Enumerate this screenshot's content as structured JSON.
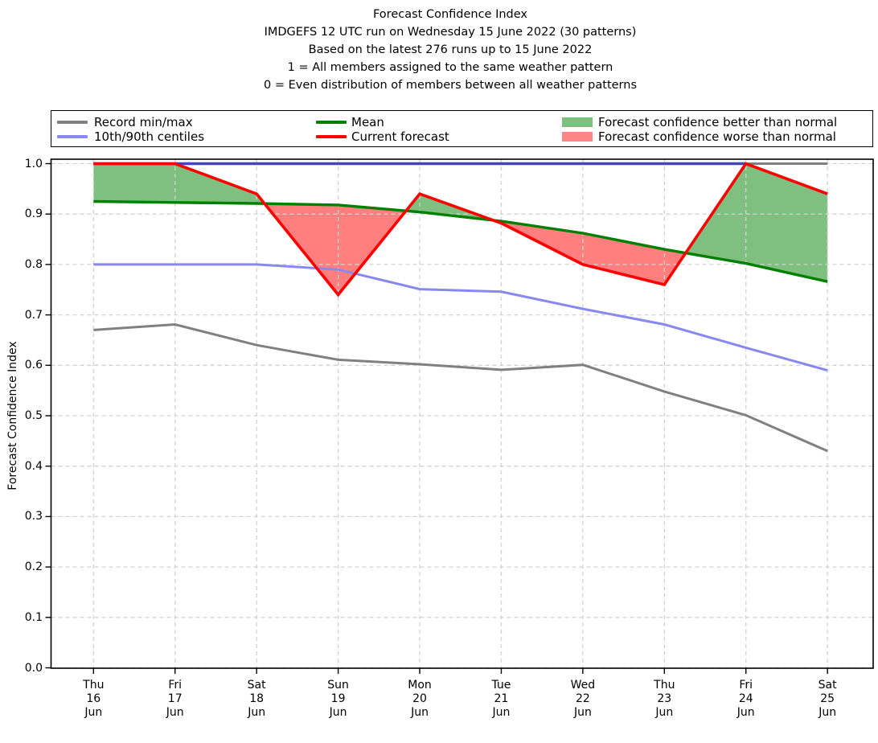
{
  "title_lines": [
    "Forecast Confidence Index",
    "IMDGEFS 12 UTC run on Wednesday 15 June 2022 (30 patterns)",
    "Based on the latest 276 runs up to 15 June 2022",
    "1 = All members assigned to the same weather pattern",
    "0 = Even distribution of members between all weather patterns"
  ],
  "legend": {
    "items": [
      {
        "label": "Record min/max",
        "type": "line",
        "color": "#808080"
      },
      {
        "label": "10th/90th centiles",
        "type": "line",
        "color": "#8888ee"
      },
      {
        "label": "Mean",
        "type": "line",
        "color": "#008000"
      },
      {
        "label": "Current forecast",
        "type": "line",
        "color": "#ff0000"
      },
      {
        "label": "Forecast confidence better than normal",
        "type": "patch",
        "color": "#7dc07d"
      },
      {
        "label": "Forecast confidence worse than normal",
        "type": "patch",
        "color": "#fc8585"
      }
    ]
  },
  "chart_data": {
    "type": "line",
    "title": "Forecast Confidence Index",
    "ylabel": "Forecast Confidence Index",
    "ylim": [
      0.0,
      1.0
    ],
    "yticks": [
      0.0,
      0.1,
      0.2,
      0.3,
      0.4,
      0.5,
      0.6,
      0.7,
      0.8,
      0.9,
      1.0
    ],
    "grid": true,
    "legend_position": "top",
    "categories": [
      [
        "Thu",
        "16",
        "Jun"
      ],
      [
        "Fri",
        "17",
        "Jun"
      ],
      [
        "Sat",
        "18",
        "Jun"
      ],
      [
        "Sun",
        "19",
        "Jun"
      ],
      [
        "Mon",
        "20",
        "Jun"
      ],
      [
        "Tue",
        "21",
        "Jun"
      ],
      [
        "Wed",
        "22",
        "Jun"
      ],
      [
        "Thu",
        "23",
        "Jun"
      ],
      [
        "Fri",
        "24",
        "Jun"
      ],
      [
        "Sat",
        "25",
        "Jun"
      ]
    ],
    "series": [
      {
        "key": "record_max",
        "name": "Record max",
        "color": "#808080",
        "values": [
          1.0,
          1.0,
          1.0,
          1.0,
          1.0,
          1.0,
          1.0,
          1.0,
          1.0,
          1.0
        ]
      },
      {
        "key": "record_min",
        "name": "Record min",
        "color": "#808080",
        "values": [
          0.67,
          0.681,
          0.64,
          0.611,
          0.602,
          0.591,
          0.601,
          0.548,
          0.501,
          0.43
        ]
      },
      {
        "key": "p10",
        "name": "10th centile",
        "color": "#8888ee",
        "values": [
          0.8,
          0.8,
          0.8,
          0.79,
          0.751,
          0.746,
          0.712,
          0.681,
          0.635,
          0.59
        ]
      },
      {
        "key": "mean",
        "name": "Mean",
        "color": "#008000",
        "values": [
          0.925,
          0.923,
          0.921,
          0.918,
          0.904,
          0.886,
          0.862,
          0.83,
          0.802,
          0.766
        ]
      },
      {
        "key": "p90",
        "name": "90th centile",
        "color": "#4343bb",
        "values": [
          1.0,
          1.0,
          1.0,
          1.0,
          1.0,
          1.0,
          1.0,
          1.0,
          1.0,
          null
        ]
      },
      {
        "key": "forecast",
        "name": "Current forecast",
        "color": "#ff0000",
        "values": [
          1.0,
          1.0,
          0.94,
          0.74,
          0.94,
          0.882,
          0.8,
          0.76,
          1.0,
          0.94
        ]
      }
    ],
    "fill_colors": {
      "better": "rgba(0,128,0,0.5)",
      "worse": "rgba(255,0,0,0.5)"
    }
  }
}
